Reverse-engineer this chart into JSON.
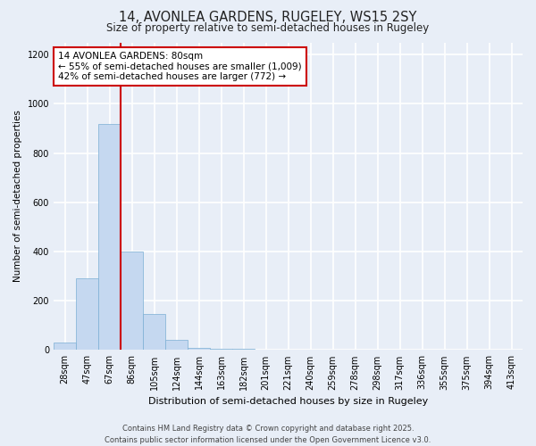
{
  "title1": "14, AVONLEA GARDENS, RUGELEY, WS15 2SY",
  "title2": "Size of property relative to semi-detached houses in Rugeley",
  "xlabel": "Distribution of semi-detached houses by size in Rugeley",
  "ylabel": "Number of semi-detached properties",
  "categories": [
    "28sqm",
    "47sqm",
    "67sqm",
    "86sqm",
    "105sqm",
    "124sqm",
    "144sqm",
    "163sqm",
    "182sqm",
    "201sqm",
    "221sqm",
    "240sqm",
    "259sqm",
    "278sqm",
    "298sqm",
    "317sqm",
    "336sqm",
    "355sqm",
    "375sqm",
    "394sqm",
    "413sqm"
  ],
  "values": [
    30,
    290,
    920,
    400,
    145,
    40,
    10,
    5,
    5,
    0,
    0,
    0,
    0,
    0,
    0,
    0,
    0,
    0,
    0,
    0,
    0
  ],
  "bar_color": "#c5d8f0",
  "bar_edge_color": "#7bafd4",
  "vline_color": "#cc0000",
  "annotation_title": "14 AVONLEA GARDENS: 80sqm",
  "annotation_line1": "← 55% of semi-detached houses are smaller (1,009)",
  "annotation_line2": "42% of semi-detached houses are larger (772) →",
  "annotation_box_edgecolor": "#cc0000",
  "ylim": [
    0,
    1250
  ],
  "yticks": [
    0,
    200,
    400,
    600,
    800,
    1000,
    1200
  ],
  "background_color": "#e8eef7",
  "grid_color": "#ffffff",
  "footer1": "Contains HM Land Registry data © Crown copyright and database right 2025.",
  "footer2": "Contains public sector information licensed under the Open Government Licence v3.0."
}
